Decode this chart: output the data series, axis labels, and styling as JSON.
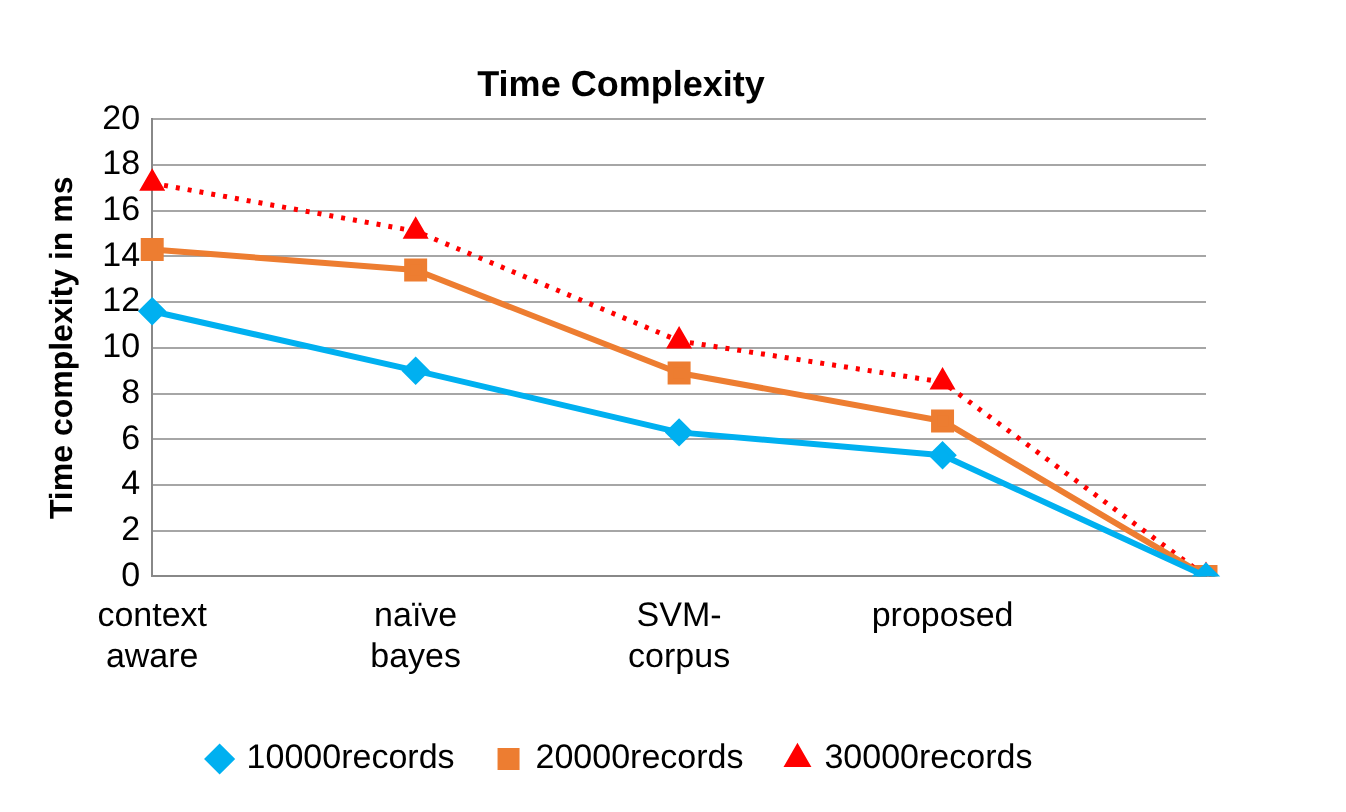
{
  "chart_data": {
    "type": "line",
    "title": "Time Complexity",
    "ylabel": "Time complexity in ms",
    "categories": [
      "context aware",
      "naïve bayes",
      "SVM-corpus",
      "proposed",
      null
    ],
    "series": [
      {
        "name": "10000records",
        "color": "#00b0f0",
        "marker": "diamond",
        "line_style": "solid",
        "values": [
          11.6,
          9.0,
          6.3,
          5.3,
          0
        ]
      },
      {
        "name": "20000records",
        "color": "#ed7d31",
        "marker": "square",
        "line_style": "solid",
        "values": [
          14.3,
          13.4,
          8.9,
          6.8,
          0
        ]
      },
      {
        "name": "30000records",
        "color": "#ff0000",
        "marker": "triangle",
        "line_style": "dotted",
        "values": [
          17.2,
          15.1,
          10.3,
          8.5,
          0
        ]
      }
    ],
    "ylim": [
      0,
      20
    ],
    "yticks": [
      0,
      2,
      4,
      6,
      8,
      10,
      12,
      14,
      16,
      18,
      20
    ],
    "grid": "y",
    "legend": "bottom"
  }
}
